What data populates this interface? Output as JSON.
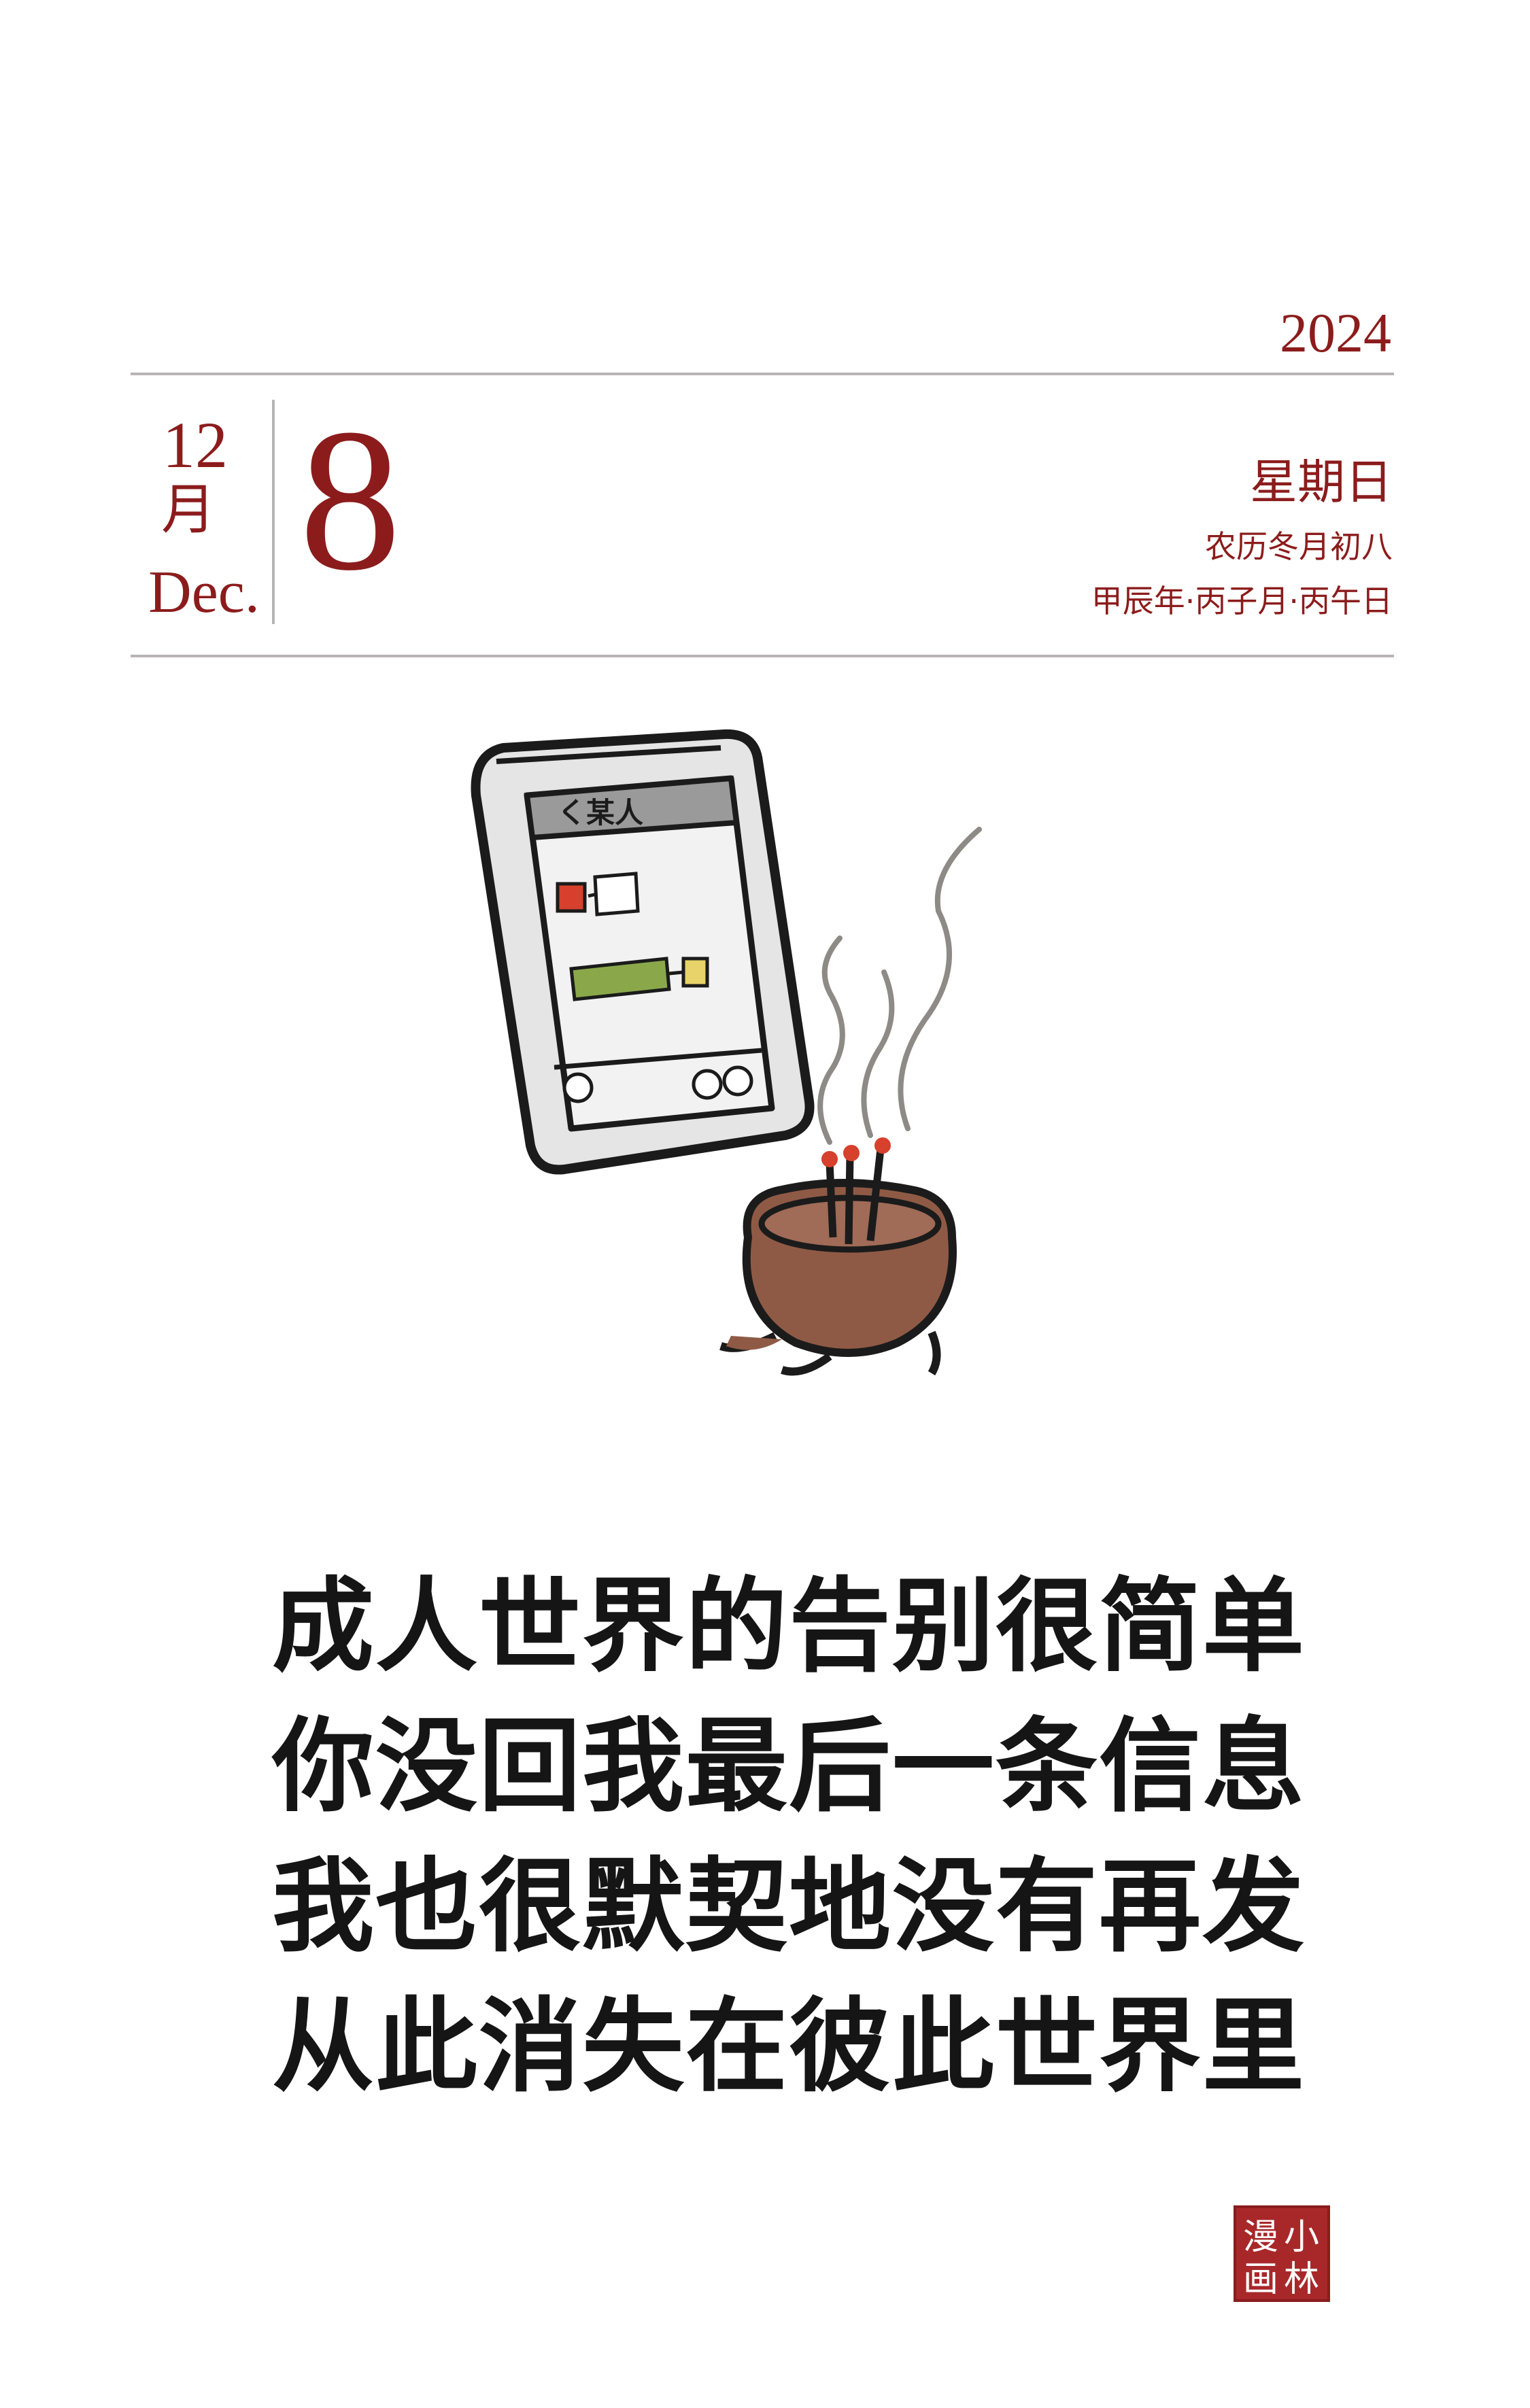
{
  "header": {
    "year": "2024",
    "month_number": "12",
    "month_cn": "月",
    "month_en": "Dec.",
    "day": "8",
    "weekday": "星期日",
    "lunar_date": "农历冬月初八",
    "ganzhi": "甲辰年·丙子月·丙午日"
  },
  "illustration": {
    "phone_contact_label": "く某人"
  },
  "poem": {
    "lines": [
      "成人世界的告别很简单",
      "你没回我最后一条信息",
      "我也很默契地没有再发",
      "从此消失在彼此世界里"
    ]
  },
  "seal": {
    "text": "小林漫画"
  },
  "colors": {
    "accent": "#8c1c1c",
    "rule": "#b9b4b4",
    "ink": "#151515"
  }
}
